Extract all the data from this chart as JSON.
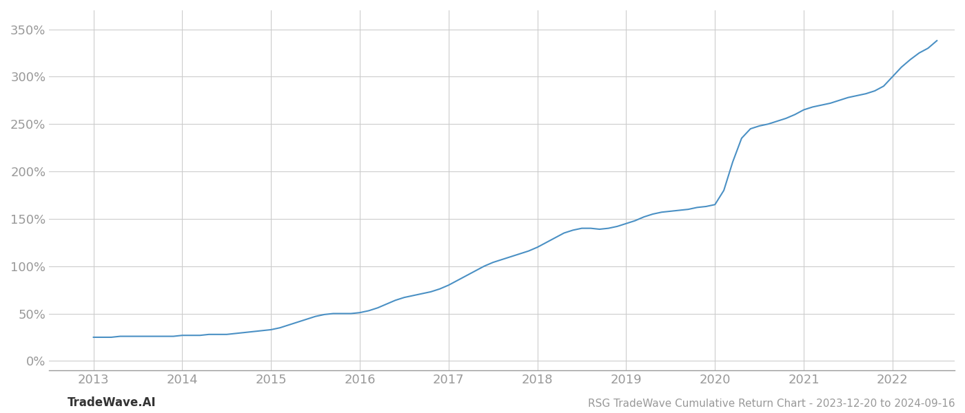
{
  "title": "RSG TradeWave Cumulative Return Chart - 2023-12-20 to 2024-09-16",
  "watermark": "TradeWave.AI",
  "line_color": "#4a90c4",
  "background_color": "#ffffff",
  "grid_color": "#cccccc",
  "tick_color": "#999999",
  "title_color": "#555555",
  "watermark_color": "#333333",
  "x_years": [
    2013,
    2014,
    2015,
    2016,
    2017,
    2018,
    2019,
    2020,
    2021,
    2022
  ],
  "y_ticks": [
    0,
    50,
    100,
    150,
    200,
    250,
    300,
    350
  ],
  "ylim": [
    -10,
    370
  ],
  "xlim": [
    2012.5,
    2022.7
  ],
  "x_data": [
    2013.0,
    2013.1,
    2013.2,
    2013.3,
    2013.4,
    2013.5,
    2013.6,
    2013.7,
    2013.8,
    2013.9,
    2014.0,
    2014.1,
    2014.2,
    2014.3,
    2014.4,
    2014.5,
    2014.6,
    2014.7,
    2014.8,
    2014.9,
    2015.0,
    2015.1,
    2015.2,
    2015.3,
    2015.4,
    2015.5,
    2015.6,
    2015.7,
    2015.8,
    2015.9,
    2016.0,
    2016.1,
    2016.2,
    2016.3,
    2016.4,
    2016.5,
    2016.6,
    2016.7,
    2016.8,
    2016.9,
    2017.0,
    2017.1,
    2017.2,
    2017.3,
    2017.4,
    2017.5,
    2017.6,
    2017.7,
    2017.8,
    2017.9,
    2018.0,
    2018.1,
    2018.2,
    2018.3,
    2018.4,
    2018.5,
    2018.6,
    2018.7,
    2018.8,
    2018.9,
    2019.0,
    2019.1,
    2019.2,
    2019.3,
    2019.4,
    2019.5,
    2019.6,
    2019.7,
    2019.8,
    2019.9,
    2020.0,
    2020.1,
    2020.2,
    2020.3,
    2020.4,
    2020.5,
    2020.6,
    2020.7,
    2020.8,
    2020.9,
    2021.0,
    2021.1,
    2021.2,
    2021.3,
    2021.4,
    2021.5,
    2021.6,
    2021.7,
    2021.8,
    2021.9,
    2022.0,
    2022.1,
    2022.2,
    2022.3,
    2022.4,
    2022.5
  ],
  "y_data": [
    25,
    25,
    25,
    26,
    26,
    26,
    26,
    26,
    26,
    26,
    27,
    27,
    27,
    28,
    28,
    28,
    29,
    30,
    31,
    32,
    33,
    35,
    38,
    41,
    44,
    47,
    49,
    50,
    50,
    50,
    51,
    53,
    56,
    60,
    64,
    67,
    69,
    71,
    73,
    76,
    80,
    85,
    90,
    95,
    100,
    104,
    107,
    110,
    113,
    116,
    120,
    125,
    130,
    135,
    138,
    140,
    140,
    139,
    140,
    142,
    145,
    148,
    152,
    155,
    157,
    158,
    159,
    160,
    162,
    163,
    165,
    180,
    210,
    235,
    245,
    248,
    250,
    253,
    256,
    260,
    265,
    268,
    270,
    272,
    275,
    278,
    280,
    282,
    285,
    290,
    300,
    310,
    318,
    325,
    330,
    338
  ],
  "line_width": 1.5,
  "figsize": [
    14.0,
    6.0
  ],
  "dpi": 100
}
